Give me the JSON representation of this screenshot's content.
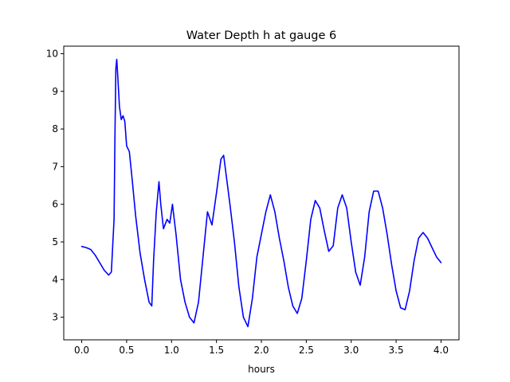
{
  "chart_data": {
    "type": "line",
    "title": "Water Depth h at gauge 6",
    "xlabel": "hours",
    "ylabel": "",
    "xlim": [
      -0.2,
      4.2
    ],
    "ylim": [
      2.4,
      10.2
    ],
    "xticks": [
      0.0,
      0.5,
      1.0,
      1.5,
      2.0,
      2.5,
      3.0,
      3.5,
      4.0
    ],
    "xtick_labels": [
      "0.0",
      "0.5",
      "1.0",
      "1.5",
      "2.0",
      "2.5",
      "3.0",
      "3.5",
      "4.0"
    ],
    "yticks": [
      3,
      4,
      5,
      6,
      7,
      8,
      9,
      10
    ],
    "ytick_labels": [
      "3",
      "4",
      "5",
      "6",
      "7",
      "8",
      "9",
      "10"
    ],
    "grid": false,
    "legend": "none",
    "series": [
      {
        "color": "#0000ff",
        "points": [
          [
            0.0,
            4.88
          ],
          [
            0.05,
            4.85
          ],
          [
            0.1,
            4.8
          ],
          [
            0.15,
            4.65
          ],
          [
            0.2,
            4.45
          ],
          [
            0.25,
            4.25
          ],
          [
            0.3,
            4.12
          ],
          [
            0.33,
            4.2
          ],
          [
            0.36,
            5.6
          ],
          [
            0.37,
            7.8
          ],
          [
            0.38,
            9.6
          ],
          [
            0.39,
            9.85
          ],
          [
            0.4,
            9.45
          ],
          [
            0.42,
            8.6
          ],
          [
            0.44,
            8.25
          ],
          [
            0.46,
            8.35
          ],
          [
            0.48,
            8.2
          ],
          [
            0.5,
            7.55
          ],
          [
            0.53,
            7.4
          ],
          [
            0.56,
            6.7
          ],
          [
            0.6,
            5.7
          ],
          [
            0.65,
            4.7
          ],
          [
            0.7,
            4.0
          ],
          [
            0.75,
            3.4
          ],
          [
            0.78,
            3.3
          ],
          [
            0.8,
            4.5
          ],
          [
            0.83,
            5.8
          ],
          [
            0.86,
            6.6
          ],
          [
            0.88,
            6.0
          ],
          [
            0.91,
            5.35
          ],
          [
            0.95,
            5.6
          ],
          [
            0.98,
            5.5
          ],
          [
            1.01,
            6.0
          ],
          [
            1.05,
            5.2
          ],
          [
            1.1,
            4.0
          ],
          [
            1.15,
            3.4
          ],
          [
            1.2,
            3.0
          ],
          [
            1.25,
            2.85
          ],
          [
            1.3,
            3.4
          ],
          [
            1.35,
            4.6
          ],
          [
            1.4,
            5.8
          ],
          [
            1.45,
            5.45
          ],
          [
            1.5,
            6.3
          ],
          [
            1.55,
            7.2
          ],
          [
            1.58,
            7.3
          ],
          [
            1.65,
            6.0
          ],
          [
            1.7,
            5.0
          ],
          [
            1.75,
            3.8
          ],
          [
            1.8,
            3.0
          ],
          [
            1.85,
            2.75
          ],
          [
            1.9,
            3.5
          ],
          [
            1.95,
            4.6
          ],
          [
            2.0,
            5.2
          ],
          [
            2.05,
            5.8
          ],
          [
            2.1,
            6.25
          ],
          [
            2.15,
            5.8
          ],
          [
            2.2,
            5.1
          ],
          [
            2.25,
            4.5
          ],
          [
            2.3,
            3.8
          ],
          [
            2.35,
            3.3
          ],
          [
            2.4,
            3.1
          ],
          [
            2.45,
            3.5
          ],
          [
            2.5,
            4.5
          ],
          [
            2.55,
            5.6
          ],
          [
            2.6,
            6.1
          ],
          [
            2.65,
            5.9
          ],
          [
            2.7,
            5.3
          ],
          [
            2.75,
            4.75
          ],
          [
            2.8,
            4.9
          ],
          [
            2.85,
            5.9
          ],
          [
            2.9,
            6.25
          ],
          [
            2.95,
            5.9
          ],
          [
            3.0,
            5.0
          ],
          [
            3.05,
            4.2
          ],
          [
            3.1,
            3.85
          ],
          [
            3.15,
            4.6
          ],
          [
            3.2,
            5.8
          ],
          [
            3.25,
            6.35
          ],
          [
            3.3,
            6.35
          ],
          [
            3.35,
            5.9
          ],
          [
            3.4,
            5.2
          ],
          [
            3.45,
            4.4
          ],
          [
            3.5,
            3.7
          ],
          [
            3.55,
            3.25
          ],
          [
            3.6,
            3.2
          ],
          [
            3.65,
            3.7
          ],
          [
            3.7,
            4.5
          ],
          [
            3.75,
            5.1
          ],
          [
            3.8,
            5.25
          ],
          [
            3.85,
            5.1
          ],
          [
            3.9,
            4.85
          ],
          [
            3.95,
            4.6
          ],
          [
            4.0,
            4.45
          ]
        ]
      }
    ]
  }
}
